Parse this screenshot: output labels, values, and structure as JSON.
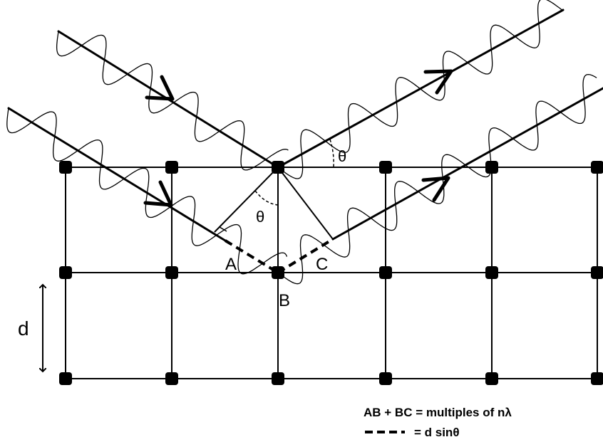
{
  "diagram": {
    "labels": {
      "point_a": "A",
      "point_b": "B",
      "point_c": "C",
      "spacing": "d",
      "angle_incident": "θ",
      "angle_reflected": "θ"
    },
    "equation": "AB + BC = multiples of nλ",
    "legend_dashed": "= d sinθ"
  }
}
